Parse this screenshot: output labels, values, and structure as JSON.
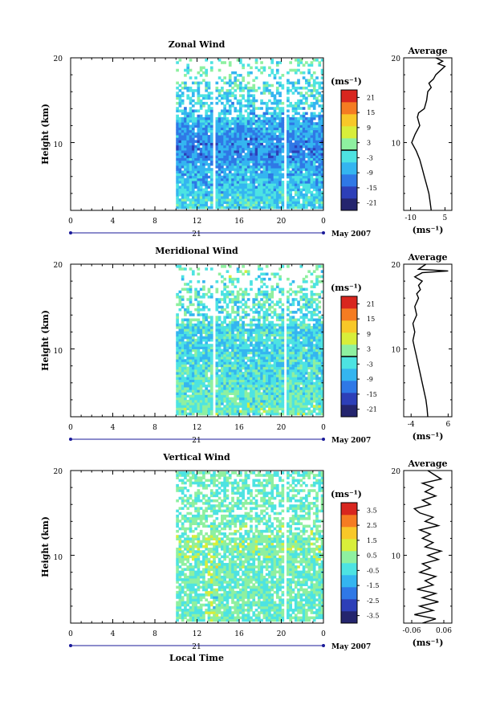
{
  "figure": {
    "x_axis_title": "Local Time",
    "date_label": "May 2007",
    "day_label": "21",
    "x_ticks": [
      "0",
      "4",
      "8",
      "12",
      "16",
      "20",
      "0"
    ],
    "height_axis_title": "Height (km)",
    "height_ticks": [
      "20",
      "10"
    ],
    "profile_title": "Average",
    "colorbar_unit": "(ms⁻¹)",
    "profile_unit": "(ms⁻¹)"
  },
  "chart_data": [
    {
      "type": "heatmap",
      "title": "Zonal Wind",
      "xlabel": "",
      "ylabel": "Height (km)",
      "x_range_hours": [
        0,
        24
      ],
      "y_range_km": [
        2,
        20
      ],
      "data_start_hour": 10,
      "data_gap_hours": [
        13.3,
        20.2
      ],
      "colorbar": {
        "unit": "(ms⁻¹)",
        "range": [
          -24,
          24
        ],
        "ticks": [
          "21",
          "15",
          "9",
          "3",
          "-3",
          "-9",
          "-15",
          "-21"
        ],
        "zero_line": 0
      },
      "approx_profile_by_height": [
        {
          "h": 3,
          "v": -4
        },
        {
          "h": 5,
          "v": -6
        },
        {
          "h": 7,
          "v": -8
        },
        {
          "h": 9,
          "v": -11
        },
        {
          "h": 11,
          "v": -9
        },
        {
          "h": 13,
          "v": -6
        },
        {
          "h": 15,
          "v": -4
        },
        {
          "h": 17,
          "v": -2
        },
        {
          "h": 19,
          "v": 0
        }
      ],
      "average_profile": {
        "title": "Average",
        "xlabel": "(ms⁻¹)",
        "xlim": [
          -13,
          8
        ],
        "x_ticks": [
          "-10",
          "5"
        ],
        "y_ticks": [
          "20",
          "10"
        ],
        "points": [
          [
            -1,
            2
          ],
          [
            -1.5,
            3
          ],
          [
            -2,
            4
          ],
          [
            -3,
            5
          ],
          [
            -4,
            6
          ],
          [
            -5,
            7
          ],
          [
            -6,
            8
          ],
          [
            -7.5,
            9
          ],
          [
            -9.5,
            10
          ],
          [
            -8,
            11
          ],
          [
            -6,
            12
          ],
          [
            -7,
            13
          ],
          [
            -6.5,
            13.5
          ],
          [
            -4,
            14
          ],
          [
            -3,
            15
          ],
          [
            -2.5,
            16
          ],
          [
            -1,
            16.5
          ],
          [
            -2,
            17
          ],
          [
            0,
            17.5
          ],
          [
            1,
            18
          ],
          [
            3,
            18.5
          ],
          [
            5,
            19
          ],
          [
            2,
            19.3
          ],
          [
            4,
            19.6
          ],
          [
            1,
            20
          ]
        ]
      }
    },
    {
      "type": "heatmap",
      "title": "Meridional Wind",
      "xlabel": "",
      "ylabel": "Height (km)",
      "x_range_hours": [
        0,
        24
      ],
      "y_range_km": [
        2,
        20
      ],
      "data_start_hour": 10,
      "data_gap_hours": [
        13.3,
        20.2
      ],
      "colorbar": {
        "unit": "(ms⁻¹)",
        "range": [
          -24,
          24
        ],
        "ticks": [
          "21",
          "15",
          "9",
          "3",
          "-3",
          "-9",
          "-15",
          "-21"
        ],
        "zero_line": 0
      },
      "approx_profile_by_height": [
        {
          "h": 3,
          "v": 0
        },
        {
          "h": 5,
          "v": -1
        },
        {
          "h": 7,
          "v": -2
        },
        {
          "h": 9,
          "v": -3
        },
        {
          "h": 11,
          "v": -4
        },
        {
          "h": 13,
          "v": -3
        },
        {
          "h": 15,
          "v": -2
        },
        {
          "h": 17,
          "v": -1
        },
        {
          "h": 19,
          "v": 0
        }
      ],
      "average_profile": {
        "title": "Average",
        "xlabel": "(ms⁻¹)",
        "xlim": [
          -6,
          7
        ],
        "x_ticks": [
          "-4",
          "6"
        ],
        "y_ticks": [
          "20",
          "10"
        ],
        "points": [
          [
            0.5,
            2
          ],
          [
            0.3,
            3
          ],
          [
            0,
            4
          ],
          [
            -0.5,
            5
          ],
          [
            -1,
            6
          ],
          [
            -1.5,
            7
          ],
          [
            -2,
            8
          ],
          [
            -2.5,
            9
          ],
          [
            -3,
            10
          ],
          [
            -3.5,
            11
          ],
          [
            -3,
            12
          ],
          [
            -3.5,
            13
          ],
          [
            -2.5,
            14
          ],
          [
            -3,
            15
          ],
          [
            -2,
            16
          ],
          [
            -2.5,
            16.5
          ],
          [
            -1.5,
            17
          ],
          [
            -2,
            17.5
          ],
          [
            -1,
            18
          ],
          [
            -3,
            18.5
          ],
          [
            -1,
            19
          ],
          [
            6,
            19.2
          ],
          [
            -2,
            19.4
          ],
          [
            0,
            20
          ]
        ]
      }
    },
    {
      "type": "heatmap",
      "title": "Vertical Wind",
      "xlabel": "Local Time",
      "ylabel": "Height (km)",
      "x_range_hours": [
        0,
        24
      ],
      "y_range_km": [
        2,
        20
      ],
      "data_start_hour": 10,
      "data_gap_hours": [
        20.2
      ],
      "colorbar": {
        "unit": "(ms⁻¹)",
        "range": [
          -4,
          4
        ],
        "ticks": [
          "3.5",
          "2.5",
          "1.5",
          "0.5",
          "-0.5",
          "-1.5",
          "-2.5",
          "-3.5"
        ]
      },
      "approx_profile_by_height": [
        {
          "h": 3,
          "v": 0
        },
        {
          "h": 7,
          "v": 0
        },
        {
          "h": 11,
          "v": 0.3
        },
        {
          "h": 15,
          "v": 0
        },
        {
          "h": 19,
          "v": 0
        }
      ],
      "average_profile": {
        "title": "Average",
        "xlabel": "(ms⁻¹)",
        "xlim": [
          -0.09,
          0.09
        ],
        "x_ticks": [
          "-0.06",
          "0.06"
        ],
        "y_ticks": [
          "20",
          "10"
        ],
        "points": [
          [
            -0.02,
            2
          ],
          [
            0.03,
            2.5
          ],
          [
            -0.05,
            3
          ],
          [
            0.02,
            3.5
          ],
          [
            -0.03,
            4
          ],
          [
            0.04,
            4.5
          ],
          [
            -0.02,
            5
          ],
          [
            0.03,
            5.5
          ],
          [
            -0.04,
            6
          ],
          [
            0.02,
            6.5
          ],
          [
            -0.01,
            7
          ],
          [
            0.03,
            7.5
          ],
          [
            -0.03,
            8
          ],
          [
            0.01,
            8.5
          ],
          [
            -0.02,
            9
          ],
          [
            0.04,
            9.5
          ],
          [
            0.0,
            10
          ],
          [
            0.05,
            10.5
          ],
          [
            -0.01,
            11
          ],
          [
            0.02,
            11.5
          ],
          [
            -0.02,
            12
          ],
          [
            0.01,
            12.5
          ],
          [
            -0.03,
            13
          ],
          [
            0.04,
            13.5
          ],
          [
            -0.01,
            14
          ],
          [
            0.02,
            14.5
          ],
          [
            -0.03,
            15
          ],
          [
            -0.05,
            15.5
          ],
          [
            0.01,
            16
          ],
          [
            -0.02,
            16.5
          ],
          [
            0.03,
            17
          ],
          [
            -0.01,
            17.5
          ],
          [
            0.02,
            18
          ],
          [
            -0.02,
            18.5
          ],
          [
            0.05,
            19
          ],
          [
            0.0,
            20
          ]
        ]
      }
    }
  ],
  "colors": {
    "colormap": [
      "#24256e",
      "#2d3fb8",
      "#2f78e6",
      "#34b5f0",
      "#4de3e2",
      "#8ef0a0",
      "#d8ee3a",
      "#f8c828",
      "#f57c22",
      "#d8261f"
    ]
  }
}
